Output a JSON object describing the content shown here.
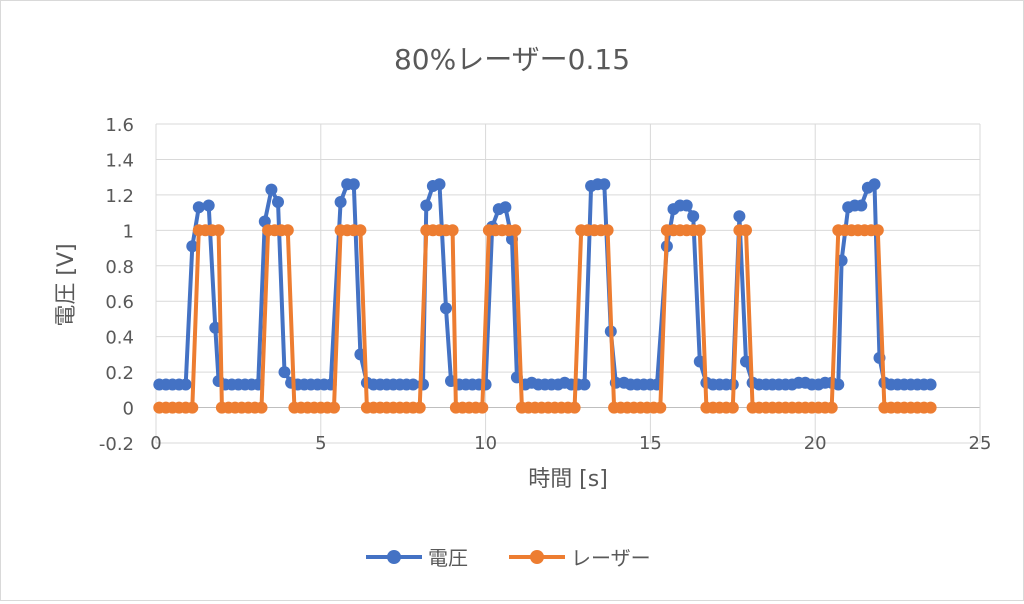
{
  "chart_data": {
    "type": "scatter",
    "title": "80%レーザー0.15",
    "xlabel": "時間 [s]",
    "ylabel": "電圧 [V]",
    "xlim": [
      0,
      25
    ],
    "ylim": [
      -0.2,
      1.6
    ],
    "xticks": [
      0,
      5,
      10,
      15,
      20,
      25
    ],
    "yticks": [
      -0.2,
      0,
      0.2,
      0.4,
      0.6,
      0.8,
      1,
      1.2,
      1.4,
      1.6
    ],
    "grid": true,
    "legend": "bottom",
    "series": [
      {
        "name": "電圧",
        "color": "#4472c4",
        "points": [
          [
            0.1,
            0.13
          ],
          [
            0.3,
            0.13
          ],
          [
            0.5,
            0.13
          ],
          [
            0.7,
            0.13
          ],
          [
            0.9,
            0.13
          ],
          [
            1.1,
            0.91
          ],
          [
            1.3,
            1.13
          ],
          [
            1.6,
            1.14
          ],
          [
            1.8,
            0.45
          ],
          [
            1.9,
            0.15
          ],
          [
            2.1,
            0.13
          ],
          [
            2.3,
            0.13
          ],
          [
            2.5,
            0.13
          ],
          [
            2.7,
            0.13
          ],
          [
            2.9,
            0.13
          ],
          [
            3.1,
            0.13
          ],
          [
            3.3,
            1.05
          ],
          [
            3.5,
            1.23
          ],
          [
            3.7,
            1.16
          ],
          [
            3.9,
            0.2
          ],
          [
            4.1,
            0.14
          ],
          [
            4.3,
            0.13
          ],
          [
            4.5,
            0.13
          ],
          [
            4.7,
            0.13
          ],
          [
            4.9,
            0.13
          ],
          [
            5.1,
            0.13
          ],
          [
            5.3,
            0.13
          ],
          [
            5.6,
            1.16
          ],
          [
            5.8,
            1.26
          ],
          [
            6.0,
            1.26
          ],
          [
            6.2,
            0.3
          ],
          [
            6.4,
            0.14
          ],
          [
            6.6,
            0.13
          ],
          [
            6.8,
            0.13
          ],
          [
            7.0,
            0.13
          ],
          [
            7.2,
            0.13
          ],
          [
            7.4,
            0.13
          ],
          [
            7.6,
            0.13
          ],
          [
            7.8,
            0.13
          ],
          [
            8.1,
            0.13
          ],
          [
            8.2,
            1.14
          ],
          [
            8.4,
            1.25
          ],
          [
            8.6,
            1.26
          ],
          [
            8.8,
            0.56
          ],
          [
            8.95,
            0.15
          ],
          [
            9.2,
            0.13
          ],
          [
            9.4,
            0.13
          ],
          [
            9.6,
            0.13
          ],
          [
            9.8,
            0.13
          ],
          [
            10.0,
            0.13
          ],
          [
            10.2,
            1.02
          ],
          [
            10.4,
            1.12
          ],
          [
            10.6,
            1.13
          ],
          [
            10.8,
            0.95
          ],
          [
            10.95,
            0.17
          ],
          [
            11.2,
            0.13
          ],
          [
            11.4,
            0.14
          ],
          [
            11.6,
            0.13
          ],
          [
            11.8,
            0.13
          ],
          [
            12.0,
            0.13
          ],
          [
            12.2,
            0.13
          ],
          [
            12.4,
            0.14
          ],
          [
            12.6,
            0.13
          ],
          [
            12.8,
            0.13
          ],
          [
            13.0,
            0.13
          ],
          [
            13.2,
            1.25
          ],
          [
            13.4,
            1.26
          ],
          [
            13.6,
            1.26
          ],
          [
            13.8,
            0.43
          ],
          [
            13.95,
            0.14
          ],
          [
            14.2,
            0.14
          ],
          [
            14.4,
            0.13
          ],
          [
            14.6,
            0.13
          ],
          [
            14.8,
            0.13
          ],
          [
            15.0,
            0.13
          ],
          [
            15.2,
            0.13
          ],
          [
            15.5,
            0.91
          ],
          [
            15.7,
            1.12
          ],
          [
            15.9,
            1.14
          ],
          [
            16.1,
            1.14
          ],
          [
            16.3,
            1.08
          ],
          [
            16.5,
            0.26
          ],
          [
            16.7,
            0.14
          ],
          [
            16.9,
            0.13
          ],
          [
            17.1,
            0.13
          ],
          [
            17.3,
            0.13
          ],
          [
            17.5,
            0.13
          ],
          [
            17.7,
            1.08
          ],
          [
            17.9,
            0.26
          ],
          [
            18.1,
            0.14
          ],
          [
            18.3,
            0.13
          ],
          [
            18.5,
            0.13
          ],
          [
            18.7,
            0.13
          ],
          [
            18.9,
            0.13
          ],
          [
            19.1,
            0.13
          ],
          [
            19.3,
            0.13
          ],
          [
            19.5,
            0.14
          ],
          [
            19.7,
            0.14
          ],
          [
            19.9,
            0.13
          ],
          [
            20.1,
            0.13
          ],
          [
            20.3,
            0.14
          ],
          [
            20.5,
            0.14
          ],
          [
            20.7,
            0.13
          ],
          [
            20.8,
            0.83
          ],
          [
            21.0,
            1.13
          ],
          [
            21.2,
            1.14
          ],
          [
            21.4,
            1.14
          ],
          [
            21.6,
            1.24
          ],
          [
            21.8,
            1.26
          ],
          [
            21.95,
            0.28
          ],
          [
            22.1,
            0.14
          ],
          [
            22.3,
            0.13
          ],
          [
            22.5,
            0.13
          ],
          [
            22.7,
            0.13
          ],
          [
            22.9,
            0.13
          ],
          [
            23.1,
            0.13
          ],
          [
            23.3,
            0.13
          ],
          [
            23.5,
            0.13
          ]
        ]
      },
      {
        "name": "レーザー",
        "color": "#ed7d31",
        "points": [
          [
            0.1,
            0
          ],
          [
            0.3,
            0
          ],
          [
            0.5,
            0
          ],
          [
            0.7,
            0
          ],
          [
            0.9,
            0
          ],
          [
            1.1,
            0
          ],
          [
            1.3,
            1
          ],
          [
            1.5,
            1
          ],
          [
            1.7,
            1
          ],
          [
            1.9,
            1
          ],
          [
            2.0,
            0
          ],
          [
            2.2,
            0
          ],
          [
            2.4,
            0
          ],
          [
            2.6,
            0
          ],
          [
            2.8,
            0
          ],
          [
            3.0,
            0
          ],
          [
            3.2,
            0
          ],
          [
            3.4,
            1
          ],
          [
            3.6,
            1
          ],
          [
            3.8,
            1
          ],
          [
            4.0,
            1
          ],
          [
            4.2,
            0
          ],
          [
            4.4,
            0
          ],
          [
            4.6,
            0
          ],
          [
            4.8,
            0
          ],
          [
            5.0,
            0
          ],
          [
            5.2,
            0
          ],
          [
            5.4,
            0
          ],
          [
            5.6,
            1
          ],
          [
            5.8,
            1
          ],
          [
            6.0,
            1
          ],
          [
            6.2,
            1
          ],
          [
            6.4,
            0
          ],
          [
            6.6,
            0
          ],
          [
            6.8,
            0
          ],
          [
            7.0,
            0
          ],
          [
            7.2,
            0
          ],
          [
            7.4,
            0
          ],
          [
            7.6,
            0
          ],
          [
            7.8,
            0
          ],
          [
            8.0,
            0
          ],
          [
            8.2,
            1
          ],
          [
            8.4,
            1
          ],
          [
            8.6,
            1
          ],
          [
            8.8,
            1
          ],
          [
            9.0,
            1
          ],
          [
            9.1,
            0
          ],
          [
            9.3,
            0
          ],
          [
            9.5,
            0
          ],
          [
            9.7,
            0
          ],
          [
            9.9,
            0
          ],
          [
            10.1,
            1
          ],
          [
            10.3,
            1
          ],
          [
            10.5,
            1
          ],
          [
            10.7,
            1
          ],
          [
            10.9,
            1
          ],
          [
            11.1,
            0
          ],
          [
            11.3,
            0
          ],
          [
            11.5,
            0
          ],
          [
            11.7,
            0
          ],
          [
            11.9,
            0
          ],
          [
            12.1,
            0
          ],
          [
            12.3,
            0
          ],
          [
            12.5,
            0
          ],
          [
            12.7,
            0
          ],
          [
            12.9,
            1
          ],
          [
            13.1,
            1
          ],
          [
            13.3,
            1
          ],
          [
            13.5,
            1
          ],
          [
            13.7,
            1
          ],
          [
            13.9,
            0
          ],
          [
            14.1,
            0
          ],
          [
            14.3,
            0
          ],
          [
            14.5,
            0
          ],
          [
            14.7,
            0
          ],
          [
            14.9,
            0
          ],
          [
            15.1,
            0
          ],
          [
            15.3,
            0
          ],
          [
            15.5,
            1
          ],
          [
            15.7,
            1
          ],
          [
            15.9,
            1
          ],
          [
            16.1,
            1
          ],
          [
            16.3,
            1
          ],
          [
            16.5,
            1
          ],
          [
            16.7,
            0
          ],
          [
            16.9,
            0
          ],
          [
            17.1,
            0
          ],
          [
            17.3,
            0
          ],
          [
            17.5,
            0
          ],
          [
            17.7,
            1
          ],
          [
            17.9,
            1
          ],
          [
            18.1,
            0
          ],
          [
            18.3,
            0
          ],
          [
            18.5,
            0
          ],
          [
            18.7,
            0
          ],
          [
            18.9,
            0
          ],
          [
            19.1,
            0
          ],
          [
            19.3,
            0
          ],
          [
            19.5,
            0
          ],
          [
            19.7,
            0
          ],
          [
            19.9,
            0
          ],
          [
            20.1,
            0
          ],
          [
            20.3,
            0
          ],
          [
            20.5,
            0
          ],
          [
            20.7,
            1
          ],
          [
            20.9,
            1
          ],
          [
            21.1,
            1
          ],
          [
            21.3,
            1
          ],
          [
            21.5,
            1
          ],
          [
            21.7,
            1
          ],
          [
            21.9,
            1
          ],
          [
            22.1,
            0
          ],
          [
            22.3,
            0
          ],
          [
            22.5,
            0
          ],
          [
            22.7,
            0
          ],
          [
            22.9,
            0
          ],
          [
            23.1,
            0
          ],
          [
            23.3,
            0
          ],
          [
            23.5,
            0
          ]
        ]
      }
    ]
  }
}
